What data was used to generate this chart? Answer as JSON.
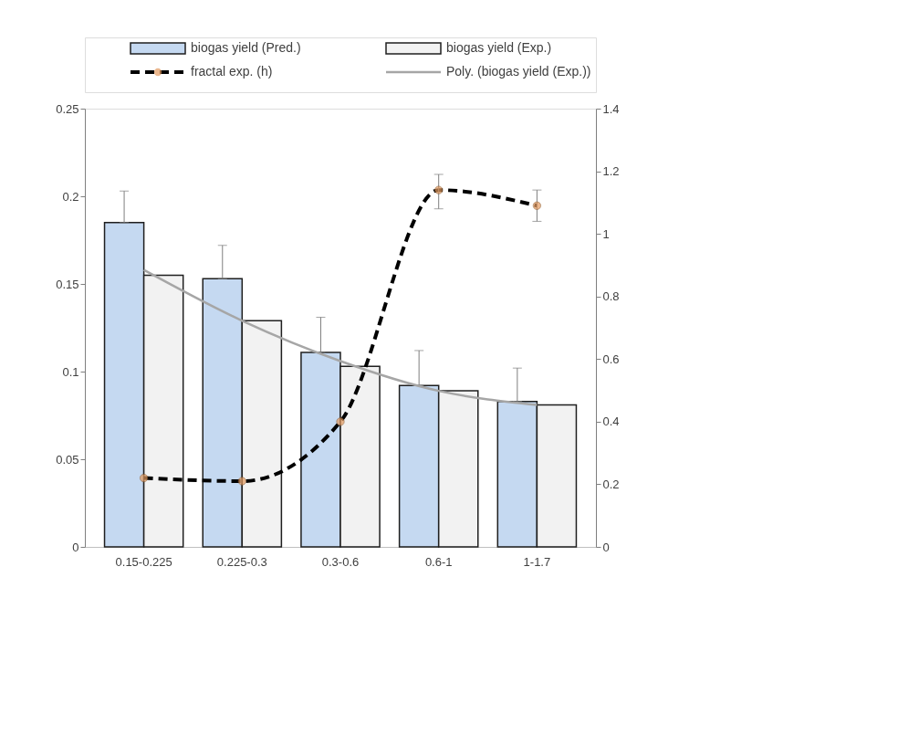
{
  "chart_data": {
    "type": "bar",
    "categories": [
      "0.15-0.225",
      "0.225-0.3",
      "0.3-0.6",
      "0.6-1",
      "1-1.7"
    ],
    "series": [
      {
        "name": "biogas yield (Pred.)",
        "color": "#c5d9f1",
        "values": [
          0.185,
          0.153,
          0.111,
          0.092,
          0.083
        ],
        "errors": [
          [
            0.185,
            0.203
          ],
          [
            0.153,
            0.172
          ],
          [
            0.111,
            0.131
          ],
          [
            0.092,
            0.112
          ],
          [
            0.083,
            0.102
          ]
        ]
      },
      {
        "name": "biogas yield (Exp.)",
        "color": "#f2f2f2",
        "values": [
          0.155,
          0.129,
          0.103,
          0.089,
          0.081
        ]
      },
      {
        "name": "fractal exp. (h)",
        "type": "line",
        "axis": "y2",
        "color": "#000000",
        "marker": "circle",
        "line_style": "dashed",
        "values": [
          0.22,
          0.21,
          0.4,
          1.14,
          1.09
        ],
        "errors": [
          null,
          null,
          null,
          [
            1.08,
            1.19
          ],
          [
            1.04,
            1.14
          ]
        ]
      },
      {
        "name": "Poly. (biogas yield (Exp.))",
        "type": "line",
        "color": "#a6a6a6",
        "line_style": "solid",
        "values": [
          0.158,
          0.129,
          0.106,
          0.089,
          0.081
        ]
      }
    ],
    "ylim": [
      0,
      0.25
    ],
    "yticks": [
      0,
      0.05,
      0.1,
      0.15,
      0.2,
      0.25
    ],
    "y2lim": [
      0,
      1.4
    ],
    "y2ticks": [
      0,
      0.2,
      0.4,
      0.6,
      0.8,
      1,
      1.2,
      1.4
    ],
    "legend": "top",
    "grid": false
  }
}
